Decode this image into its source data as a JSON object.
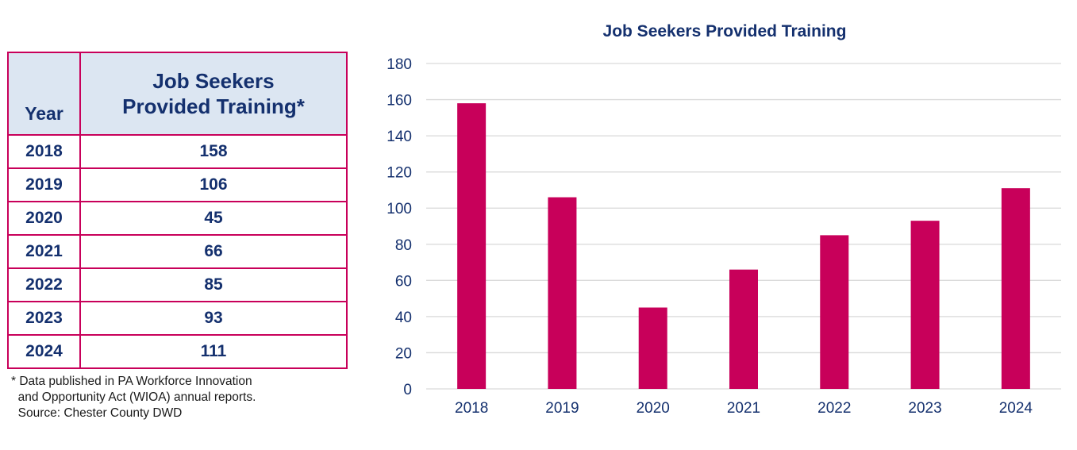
{
  "table": {
    "header_year": "Year",
    "header_value_line1": "Job Seekers",
    "header_value_line2": "Provided Training*",
    "rows": [
      {
        "year": "2018",
        "value": "158"
      },
      {
        "year": "2019",
        "value": "106"
      },
      {
        "year": "2020",
        "value": "45"
      },
      {
        "year": "2021",
        "value": "66"
      },
      {
        "year": "2022",
        "value": "85"
      },
      {
        "year": "2023",
        "value": "93"
      },
      {
        "year": "2024",
        "value": "111"
      }
    ]
  },
  "footnote": {
    "line1": "* Data published in PA Workforce Innovation",
    "line2": "  and Opportunity Act (WIOA) annual reports.",
    "line3": "  Source: Chester County DWD"
  },
  "colors": {
    "bar": "#c8005a",
    "text": "#14306e",
    "grid": "#d9d9d9",
    "header_bg": "#dce6f2"
  },
  "chart_data": {
    "type": "bar",
    "title": "Job Seekers Provided Training",
    "categories": [
      "2018",
      "2019",
      "2020",
      "2021",
      "2022",
      "2023",
      "2024"
    ],
    "values": [
      158,
      106,
      45,
      66,
      85,
      93,
      111
    ],
    "xlabel": "",
    "ylabel": "",
    "ylim": [
      0,
      180
    ],
    "yticks": [
      0,
      20,
      40,
      60,
      80,
      100,
      120,
      140,
      160,
      180
    ],
    "grid": true,
    "legend": "none"
  }
}
